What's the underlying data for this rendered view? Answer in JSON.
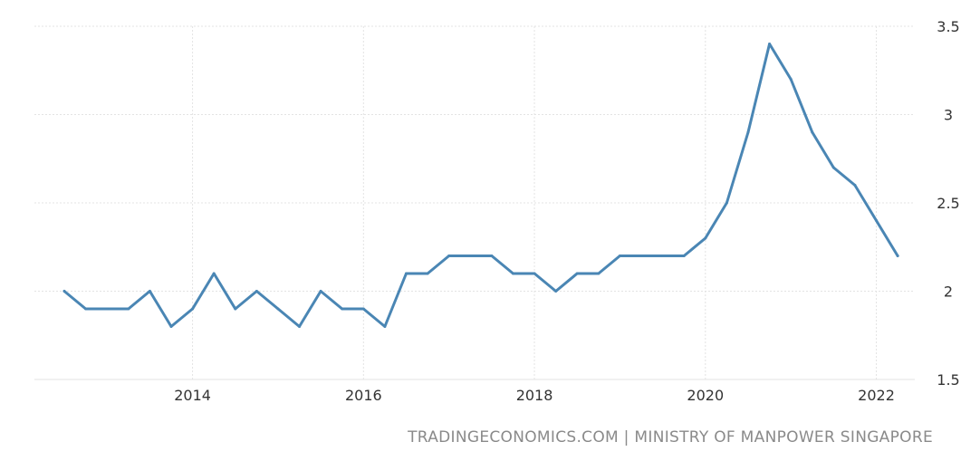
{
  "source": "TRADINGECONOMICS.COM | MINISTRY OF MANPOWER SINGAPORE",
  "colors": {
    "line": "#4a86b4",
    "grid": "#e3e3e3",
    "text": "#333333",
    "source": "#8a8a8a"
  },
  "chart_data": {
    "type": "line",
    "title": "",
    "xlabel": "",
    "ylabel": "",
    "x_tick_labels": [
      "2014",
      "2016",
      "2018",
      "2020",
      "2022"
    ],
    "x_ticks": [
      2014,
      2016,
      2018,
      2020,
      2022
    ],
    "y_tick_labels": [
      "1.5",
      "2",
      "2.5",
      "3",
      "3.5"
    ],
    "y_ticks": [
      1.5,
      2,
      2.5,
      3,
      3.5
    ],
    "xlim": [
      2012.15,
      2022.45
    ],
    "ylim": [
      1.5,
      3.5
    ],
    "grid": true,
    "y_axis_side": "right",
    "series": [
      {
        "x": [
          "2012-07",
          "2012-10",
          "2013-01",
          "2013-04",
          "2013-07",
          "2013-10",
          "2014-01",
          "2014-04",
          "2014-07",
          "2014-10",
          "2015-01",
          "2015-04",
          "2015-07",
          "2015-10",
          "2016-01",
          "2016-04",
          "2016-07",
          "2016-10",
          "2017-01",
          "2017-04",
          "2017-07",
          "2017-10",
          "2018-01",
          "2018-04",
          "2018-07",
          "2018-10",
          "2019-01",
          "2019-04",
          "2019-07",
          "2019-10",
          "2020-01",
          "2020-04",
          "2020-07",
          "2020-10",
          "2021-01",
          "2021-04",
          "2021-07",
          "2021-10",
          "2022-01",
          "2022-04"
        ],
        "values": [
          2.0,
          1.9,
          1.9,
          1.9,
          2.0,
          1.8,
          1.9,
          2.1,
          1.9,
          2.0,
          1.9,
          1.8,
          2.0,
          1.9,
          1.9,
          1.8,
          2.1,
          2.1,
          2.2,
          2.2,
          2.2,
          2.1,
          2.1,
          2.0,
          2.1,
          2.1,
          2.2,
          2.2,
          2.2,
          2.2,
          2.3,
          2.5,
          2.9,
          3.4,
          3.2,
          2.9,
          2.7,
          2.6,
          2.4,
          2.2
        ]
      }
    ]
  }
}
